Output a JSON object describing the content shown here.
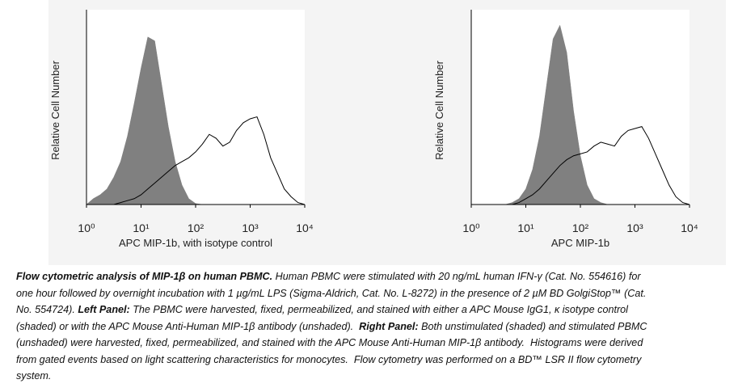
{
  "chart_data": [
    {
      "type": "line",
      "y_label": "Relative Cell Number",
      "x_label": "APC MIP-1b, with isotype control",
      "xscale": "log",
      "xlim": [
        1,
        10000
      ],
      "xticks": [
        {
          "value": 1,
          "label": "10⁰"
        },
        {
          "value": 10,
          "label": "10¹"
        },
        {
          "value": 100,
          "label": "10²"
        },
        {
          "value": 1000,
          "label": "10³"
        },
        {
          "value": 10000,
          "label": "10⁴"
        }
      ],
      "ylim": [
        0,
        100
      ],
      "x": [
        1,
        1.33,
        1.78,
        2.37,
        3.16,
        4.22,
        5.62,
        7.5,
        10,
        13.3,
        17.8,
        23.7,
        31.6,
        42.2,
        56.2,
        75,
        100,
        133,
        178,
        237,
        316,
        422,
        562,
        750,
        1000,
        1334,
        1778,
        2371,
        3162,
        4217,
        5623,
        7499,
        10000
      ],
      "series": [
        {
          "color": "#808080",
          "filled": true,
          "values": [
            0,
            3,
            5,
            8,
            14,
            22,
            35,
            52,
            70,
            86,
            84,
            62,
            40,
            22,
            10,
            3,
            0.5,
            0,
            0,
            0,
            0,
            0,
            0,
            0,
            0,
            0,
            0,
            0,
            0,
            0,
            0,
            0,
            0
          ]
        },
        {
          "color": "#000000",
          "filled": false,
          "values": [
            0,
            0,
            0,
            0,
            0,
            1,
            2,
            3,
            5,
            8,
            11,
            14,
            17,
            20,
            22,
            24,
            27,
            31,
            36,
            34,
            30,
            32,
            38,
            42,
            44,
            45,
            36,
            24,
            16,
            8,
            4,
            1,
            0
          ]
        }
      ]
    },
    {
      "type": "line",
      "y_label": "Relative Cell Number",
      "x_label": "APC MIP-1b",
      "xscale": "log",
      "xlim": [
        1,
        10000
      ],
      "xticks": [
        {
          "value": 1,
          "label": "10⁰"
        },
        {
          "value": 10,
          "label": "10¹"
        },
        {
          "value": 100,
          "label": "10²"
        },
        {
          "value": 1000,
          "label": "10³"
        },
        {
          "value": 10000,
          "label": "10⁴"
        }
      ],
      "ylim": [
        0,
        100
      ],
      "x": [
        1,
        1.33,
        1.78,
        2.37,
        3.16,
        4.22,
        5.62,
        7.5,
        10,
        13.3,
        17.8,
        23.7,
        31.6,
        42.2,
        56.2,
        75,
        100,
        133,
        178,
        237,
        316,
        422,
        562,
        750,
        1000,
        1334,
        1778,
        2371,
        3162,
        4217,
        5623,
        7499,
        10000
      ],
      "series": [
        {
          "color": "#808080",
          "filled": true,
          "values": [
            0,
            0,
            0,
            0,
            0,
            0,
            1,
            3,
            8,
            18,
            35,
            60,
            85,
            92,
            78,
            48,
            25,
            10,
            3,
            1,
            0,
            0,
            0,
            0,
            0,
            0,
            0,
            0,
            0,
            0,
            0,
            0,
            0
          ]
        },
        {
          "color": "#000000",
          "filled": false,
          "values": [
            0,
            0,
            0,
            0,
            0,
            0,
            0,
            1,
            3,
            5,
            8,
            12,
            16,
            20,
            23,
            25,
            26,
            27,
            30,
            32,
            31,
            30,
            35,
            38,
            39,
            40,
            34,
            26,
            18,
            10,
            4,
            1,
            0
          ]
        }
      ]
    }
  ],
  "caption": [
    {
      "text": "Flow cytometric analysis of MIP-1β on human PBMC.",
      "bold": true
    },
    {
      "text": " Human PBMC were stimulated with 20 ng/mL human IFN-γ (Cat. No. 554616) for one hour followed by overnight incubation with 1 µg/mL LPS (Sigma-Aldrich, Cat. No. L-8272) in the presence of 2 µM BD GolgiStop™ (Cat. No. 554724). ",
      "bold": false
    },
    {
      "text": "Left Panel:",
      "bold": true
    },
    {
      "text": " The PBMC were harvested, fixed, permeabilized, and stained with either a APC Mouse IgG1, κ isotype control (shaded) or with the APC Mouse Anti-Human MIP-1β antibody (unshaded).  ",
      "bold": false
    },
    {
      "text": "Right Panel:",
      "bold": true
    },
    {
      "text": " Both unstimulated (shaded) and stimulated PBMC (unshaded) were harvested, fixed, permeabilized, and stained with the APC Mouse Anti-Human MIP-1β antibody.  Histograms were derived from gated events based on light scattering characteristics for monocytes.  Flow cytometry was performed on a BD™ LSR II flow cytometry system.",
      "bold": false
    }
  ]
}
